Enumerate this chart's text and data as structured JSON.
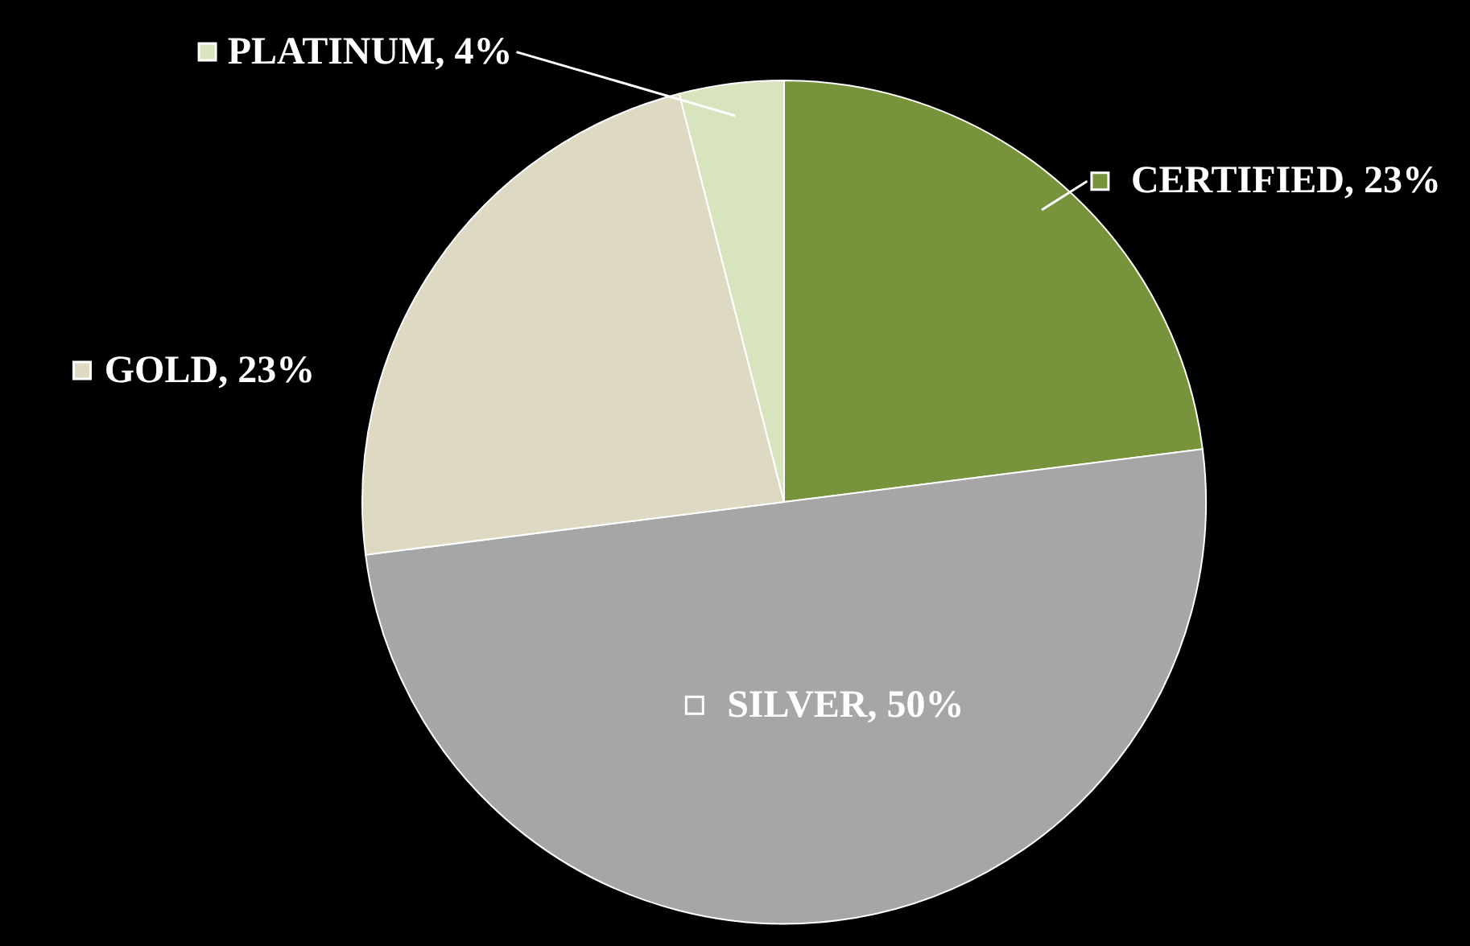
{
  "chart_data": {
    "type": "pie",
    "categories": [
      "CERTIFIED",
      "SILVER",
      "GOLD",
      "PLATINUM"
    ],
    "values": [
      23,
      50,
      23,
      4
    ],
    "value_labels": [
      "23%",
      "50%",
      "23%",
      "4%"
    ],
    "colors": [
      "#77933c",
      "#a6a6a6",
      "#ddd9c3",
      "#d7e4bd"
    ],
    "legend": "top"
  }
}
